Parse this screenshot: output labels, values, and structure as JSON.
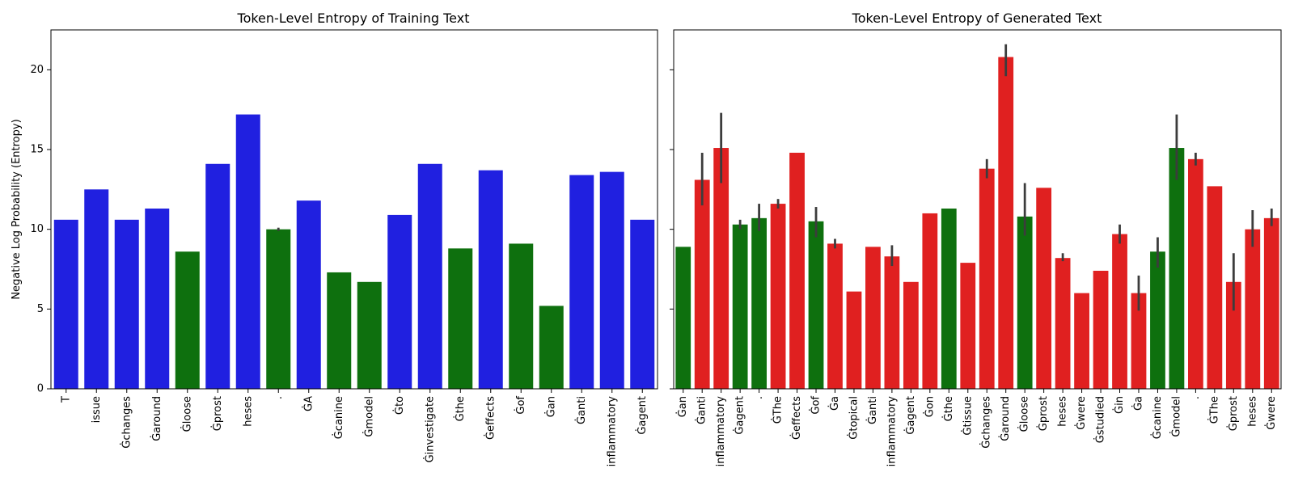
{
  "chart_data": [
    {
      "type": "bar",
      "title": "Token-Level Entropy of Training Text",
      "ylabel": "Negative Log Probability (Entropy)",
      "xlabel": "",
      "ylim": [
        0,
        22.5
      ],
      "yticks": [
        0,
        5,
        10,
        15,
        20
      ],
      "grid": false,
      "categories": [
        "T",
        "issue",
        "Ġchanges",
        "Ġaround",
        "Ġloose",
        "Ġprost",
        "heses",
        ".",
        "ĠA",
        "Ġcanine",
        "Ġmodel",
        "Ġto",
        "Ġinvestigate",
        "Ġthe",
        "Ġeffects",
        "Ġof",
        "Ġan",
        "Ġanti",
        "inflammatory",
        "Ġagent"
      ],
      "values": [
        10.6,
        12.5,
        10.6,
        11.3,
        8.6,
        14.1,
        17.2,
        10.0,
        11.8,
        7.3,
        6.7,
        10.9,
        14.1,
        8.8,
        13.7,
        9.1,
        5.2,
        13.4,
        13.6,
        10.6
      ],
      "errors": [
        null,
        null,
        null,
        null,
        null,
        null,
        null,
        [
          9.9,
          10.1
        ],
        null,
        null,
        null,
        null,
        null,
        null,
        null,
        null,
        null,
        null,
        null,
        null
      ],
      "colors": [
        "#2020e0",
        "#2020e0",
        "#2020e0",
        "#2020e0",
        "#0e700e",
        "#2020e0",
        "#2020e0",
        "#0e700e",
        "#2020e0",
        "#0e700e",
        "#0e700e",
        "#2020e0",
        "#2020e0",
        "#0e700e",
        "#2020e0",
        "#0e700e",
        "#0e700e",
        "#2020e0",
        "#2020e0",
        "#2020e0"
      ]
    },
    {
      "type": "bar",
      "title": "Token-Level Entropy of Generated Text",
      "ylabel": "",
      "xlabel": "",
      "ylim": [
        0,
        22.5
      ],
      "yticks": [
        0,
        5,
        10,
        15,
        20
      ],
      "grid": false,
      "categories": [
        "Ġan",
        "Ġanti",
        "inflammatory",
        "Ġagent",
        ".",
        "ĠThe",
        "Ġeffects",
        "Ġof",
        "Ġa",
        "Ġtopical",
        "Ġanti",
        "inflammatory",
        "Ġagent",
        "Ġon",
        "Ġthe",
        "Ġtissue",
        "Ġchanges",
        "Ġaround",
        "Ġloose",
        "Ġprost",
        "heses",
        "Ġwere",
        "Ġstudied",
        "Ġin",
        "Ġa",
        "Ġcanine",
        "Ġmodel",
        ".",
        "ĠThe",
        "Ġprost",
        "heses",
        "Ġwere"
      ],
      "values": [
        8.9,
        13.1,
        15.1,
        10.3,
        10.7,
        11.6,
        14.8,
        10.5,
        9.1,
        6.1,
        8.9,
        8.3,
        6.7,
        11.0,
        11.3,
        7.9,
        13.8,
        20.8,
        10.8,
        12.6,
        8.2,
        6.0,
        7.4,
        9.7,
        6.0,
        8.6,
        15.1,
        14.4,
        12.7,
        6.7,
        10.0,
        10.7
      ],
      "errors": [
        null,
        [
          11.5,
          14.8
        ],
        [
          12.9,
          17.3
        ],
        [
          10.0,
          10.6
        ],
        [
          9.9,
          11.6
        ],
        [
          11.3,
          11.9
        ],
        null,
        [
          9.5,
          11.4
        ],
        [
          8.8,
          9.4
        ],
        null,
        null,
        [
          7.7,
          9.0
        ],
        null,
        null,
        null,
        null,
        [
          13.2,
          14.4
        ],
        [
          19.6,
          21.6
        ],
        [
          9.6,
          12.9
        ],
        null,
        [
          8.0,
          8.5
        ],
        null,
        null,
        [
          9.1,
          10.3
        ],
        [
          4.9,
          7.1
        ],
        [
          7.6,
          9.5
        ],
        [
          13.1,
          17.2
        ],
        [
          14.0,
          14.8
        ],
        null,
        [
          4.9,
          8.5
        ],
        [
          8.9,
          11.2
        ],
        [
          10.2,
          11.3
        ]
      ],
      "colors": [
        "#0e700e",
        "#e02020",
        "#e02020",
        "#0e700e",
        "#0e700e",
        "#e02020",
        "#e02020",
        "#0e700e",
        "#e02020",
        "#e02020",
        "#e02020",
        "#e02020",
        "#e02020",
        "#e02020",
        "#0e700e",
        "#e02020",
        "#e02020",
        "#e02020",
        "#0e700e",
        "#e02020",
        "#e02020",
        "#e02020",
        "#e02020",
        "#e02020",
        "#e02020",
        "#0e700e",
        "#0e700e",
        "#e02020",
        "#e02020",
        "#e02020",
        "#e02020",
        "#e02020"
      ]
    }
  ]
}
